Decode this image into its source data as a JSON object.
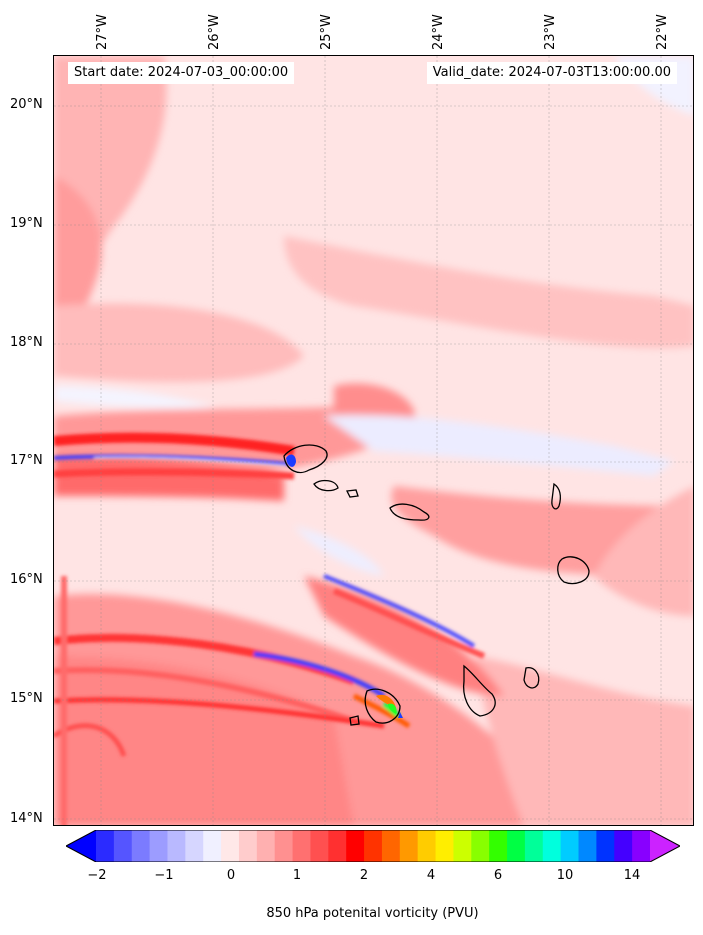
{
  "map": {
    "start_label": "Start date: 2024-07-03_00:00:00",
    "valid_label": "Valid_date: 2024-07-03T13:00:00.00",
    "longitude_ticks": [
      "27°W",
      "26°W",
      "25°W",
      "24°W",
      "23°W",
      "22°W"
    ],
    "latitude_ticks": [
      "20°N",
      "19°N",
      "18°N",
      "17°N",
      "16°N",
      "15°N",
      "14°N"
    ],
    "extent": {
      "lon_min": -27.4,
      "lon_max": -21.7,
      "lat_min": 13.95,
      "lat_max": 20.42
    },
    "gridlines": true,
    "field_colors": {
      "background": "#ffe4e4",
      "weak_positive": "#ffc8c8",
      "moderate_positive": "#ff9a9a",
      "strong_positive": "#ff5050",
      "weak_negative": "#e8e8ff",
      "strong_negative": "#4a4aff"
    }
  },
  "colorbar": {
    "label": "850 hPa potenital vorticity (PVU)",
    "tick_labels": [
      "−2",
      "−1",
      "0",
      "1",
      "2",
      "4",
      "6",
      "10",
      "14"
    ],
    "colors": [
      "#0000ff",
      "#2b2bff",
      "#5555ff",
      "#7b7bff",
      "#9c9cff",
      "#b9b9ff",
      "#d6d6ff",
      "#f0f0ff",
      "#ffe8e8",
      "#ffcccc",
      "#ffb0b0",
      "#ff9090",
      "#ff7070",
      "#ff5050",
      "#ff3030",
      "#ff0000",
      "#ff3300",
      "#ff6600",
      "#ff9900",
      "#ffcc00",
      "#ffee00",
      "#ccff00",
      "#88ff00",
      "#33ff00",
      "#00ff44",
      "#00ff99",
      "#00ffdd",
      "#00ccff",
      "#0088ff",
      "#0033ff",
      "#4400ff",
      "#8800ff",
      "#cc22ff"
    ]
  }
}
